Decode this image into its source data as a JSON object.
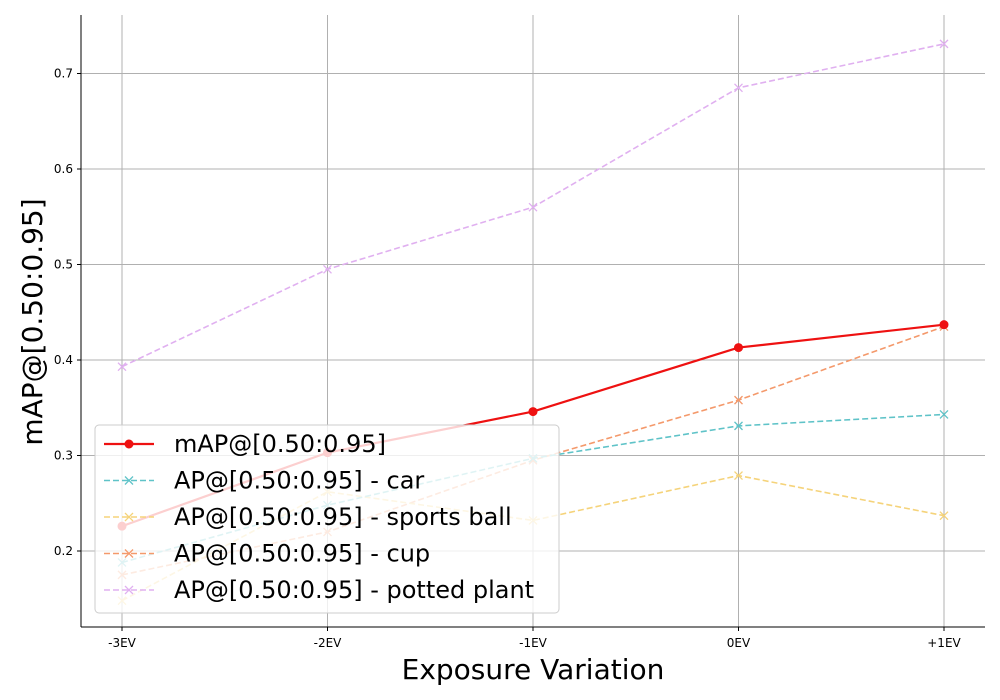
{
  "chart_data": {
    "type": "line",
    "categories": [
      "-3EV",
      "-2EV",
      "-1EV",
      "0EV",
      "+1EV"
    ],
    "xlabel": "Exposure Variation",
    "ylabel": "mAP@[0.50:0.95]",
    "ylim": [
      0.12,
      0.75
    ],
    "yticks": [
      0.2,
      0.3,
      0.4,
      0.5,
      0.6,
      0.7
    ],
    "grid": true,
    "legend_position": "lower-left",
    "series": [
      {
        "name": "mAP@[0.50:0.95]",
        "values": [
          0.226,
          0.303,
          0.346,
          0.413,
          0.437
        ],
        "color": "#ee1111",
        "style": "solid",
        "marker": "circle"
      },
      {
        "name": "AP@[0.50:0.95] - car",
        "values": [
          0.188,
          0.248,
          0.297,
          0.331,
          0.343
        ],
        "color": "#5fc3c8",
        "style": "dashed",
        "marker": "x"
      },
      {
        "name": "AP@[0.50:0.95] - sports ball",
        "values": [
          0.148,
          0.262,
          0.232,
          0.279,
          0.237
        ],
        "color": "#f5d37a",
        "style": "dashed",
        "marker": "x"
      },
      {
        "name": "AP@[0.50:0.95] - cup",
        "values": [
          0.175,
          0.22,
          0.295,
          0.358,
          0.435
        ],
        "color": "#f4996b",
        "style": "dashed",
        "marker": "x"
      },
      {
        "name": "AP@[0.50:0.95] - potted plant",
        "values": [
          0.393,
          0.495,
          0.56,
          0.685,
          0.731
        ],
        "color": "#e0b0f0",
        "style": "dashed",
        "marker": "x"
      }
    ]
  }
}
